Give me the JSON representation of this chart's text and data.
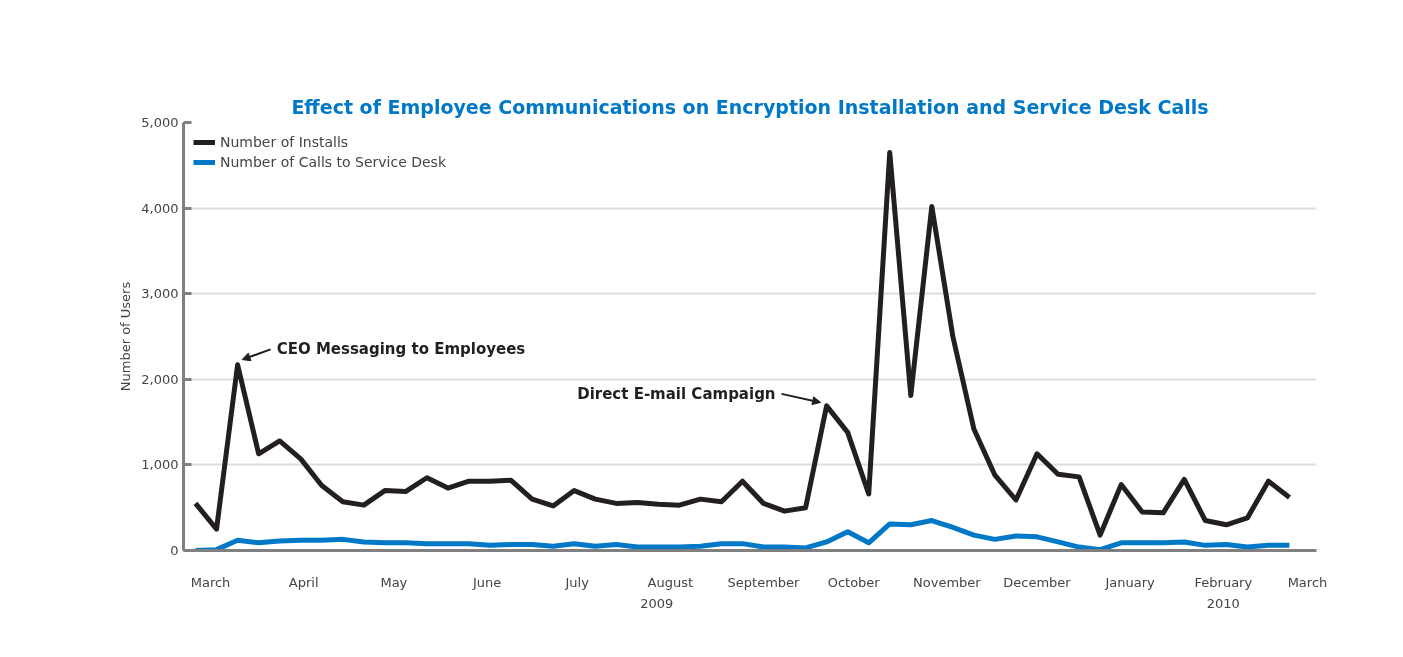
{
  "chart_data": {
    "type": "line",
    "title": "Effect of Employee Communications on Encryption Installation and Service Desk Calls",
    "ylabel": "Number of Users",
    "x": [
      "2009-02-24",
      "2009-03-03",
      "2009-03-10",
      "2009-03-17",
      "2009-03-24",
      "2009-03-31",
      "2009-04-07",
      "2009-04-14",
      "2009-04-21",
      "2009-04-28",
      "2009-05-05",
      "2009-05-12",
      "2009-05-19",
      "2009-05-26",
      "2009-06-02",
      "2009-06-09",
      "2009-06-16",
      "2009-06-23",
      "2009-06-30",
      "2009-07-07",
      "2009-07-14",
      "2009-07-21",
      "2009-07-28",
      "2009-08-04",
      "2009-08-11",
      "2009-08-18",
      "2009-08-25",
      "2009-09-01",
      "2009-09-08",
      "2009-09-15",
      "2009-09-22",
      "2009-09-29",
      "2009-10-06",
      "2009-10-13",
      "2009-10-20",
      "2009-10-27",
      "2009-11-03",
      "2009-11-10",
      "2009-11-17",
      "2009-11-24",
      "2009-12-01",
      "2009-12-08",
      "2009-12-15",
      "2009-12-22",
      "2009-12-29",
      "2010-01-05",
      "2010-01-12",
      "2010-01-19",
      "2010-01-26",
      "2010-02-02",
      "2010-02-09",
      "2010-02-16",
      "2010-02-23"
    ],
    "series": [
      {
        "name": "Number of Installs",
        "color": "#231f20",
        "values": [
          550,
          250,
          2170,
          1130,
          1280,
          1070,
          760,
          570,
          530,
          700,
          690,
          850,
          730,
          810,
          810,
          820,
          600,
          520,
          700,
          600,
          550,
          560,
          540,
          530,
          600,
          570,
          810,
          550,
          460,
          500,
          1690,
          1380,
          660,
          4650,
          1810,
          4020,
          2500,
          1420,
          880,
          590,
          1130,
          890,
          860,
          180,
          770,
          450,
          440,
          830,
          350,
          300,
          380,
          810,
          620
        ]
      },
      {
        "name": "Number of Calls to Service Desk",
        "color": "#0078c8",
        "values": [
          0,
          10,
          120,
          90,
          110,
          120,
          120,
          130,
          100,
          90,
          90,
          80,
          80,
          80,
          60,
          70,
          70,
          50,
          80,
          50,
          70,
          40,
          40,
          40,
          50,
          80,
          80,
          40,
          40,
          30,
          100,
          220,
          90,
          310,
          300,
          350,
          270,
          180,
          130,
          170,
          160,
          100,
          40,
          10,
          90,
          90,
          90,
          100,
          60,
          70,
          40,
          60,
          60
        ]
      }
    ],
    "xlim": [
      "2009-02-20",
      "2010-03-04"
    ],
    "xticks": [
      {
        "value": "2009-03-01",
        "label": "March"
      },
      {
        "value": "2009-04-01",
        "label": "April"
      },
      {
        "value": "2009-05-01",
        "label": "May"
      },
      {
        "value": "2009-06-01",
        "label": "June"
      },
      {
        "value": "2009-07-01",
        "label": "July"
      },
      {
        "value": "2009-08-01",
        "label": "August"
      },
      {
        "value": "2009-09-01",
        "label": "September"
      },
      {
        "value": "2009-10-01",
        "label": "October"
      },
      {
        "value": "2009-11-01",
        "label": "November"
      },
      {
        "value": "2009-12-01",
        "label": "December"
      },
      {
        "value": "2010-01-01",
        "label": "January"
      },
      {
        "value": "2010-02-01",
        "label": "February"
      },
      {
        "value": "2010-03-01",
        "label": "March"
      }
    ],
    "ylim": [
      0,
      5000
    ],
    "yticks": [
      {
        "value": 0,
        "label": "0"
      },
      {
        "value": 1000,
        "label": "1,000"
      },
      {
        "value": 2000,
        "label": "2,000"
      },
      {
        "value": 3000,
        "label": "3,000"
      },
      {
        "value": 4000,
        "label": "4,000"
      },
      {
        "value": 5000,
        "label": "5,000"
      }
    ],
    "grid": "y",
    "legend": "top left",
    "marker": "none",
    "line_style": "solid",
    "annotations": [
      {
        "text": "CEO Messaging to Employees",
        "x": "2009-03-10",
        "y": 2170
      },
      {
        "text": "Direct E-mail Campaign",
        "x": "2009-09-22",
        "y": 1690
      },
      "2009",
      "2010"
    ]
  }
}
